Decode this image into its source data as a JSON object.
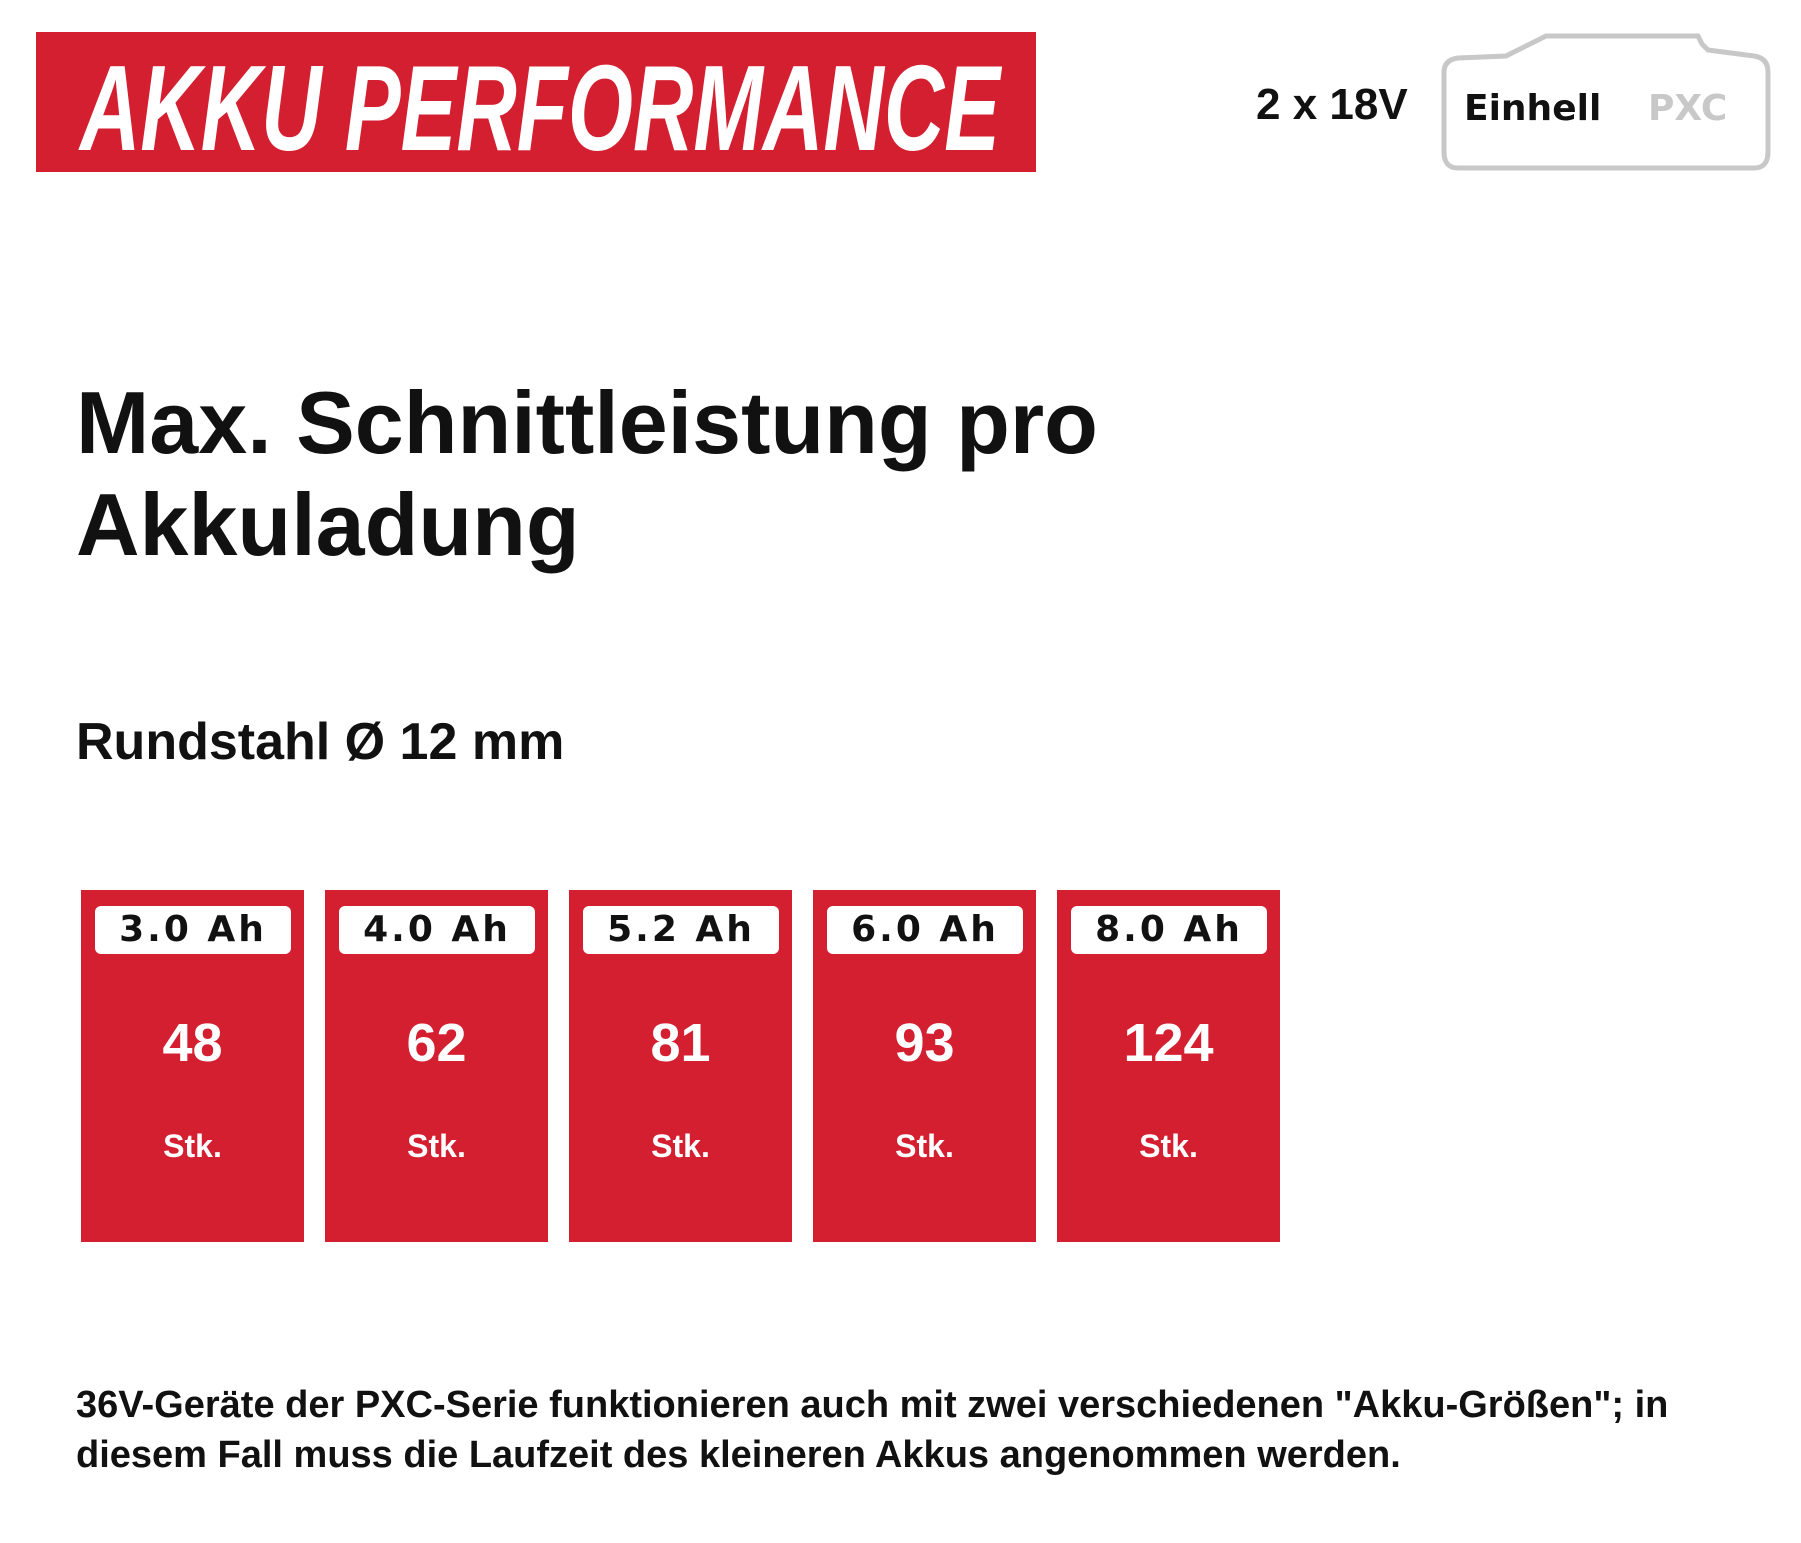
{
  "header": {
    "banner": "AKKU PERFORMANCE",
    "voltage": "2 x 18V",
    "logo": {
      "brand": "Einhell",
      "series": "PXC"
    }
  },
  "title": [
    "Max. Schnittleistung pro",
    "Akkuladung"
  ],
  "subtitle": "Rundstahl Ø 12 mm",
  "cards": [
    {
      "capacity": "3.0 Ah",
      "value": "48",
      "unit": "Stk."
    },
    {
      "capacity": "4.0 Ah",
      "value": "62",
      "unit": "Stk."
    },
    {
      "capacity": "5.2 Ah",
      "value": "81",
      "unit": "Stk."
    },
    {
      "capacity": "6.0 Ah",
      "value": "93",
      "unit": "Stk."
    },
    {
      "capacity": "8.0 Ah",
      "value": "124",
      "unit": "Stk."
    }
  ],
  "footnote": "36V-Geräte der PXC-Serie funktionieren auch mit zwei verschiedenen \"Akku-Größen\"; in diesem Fall muss die Laufzeit des kleineren Akkus angenommen werden."
}
